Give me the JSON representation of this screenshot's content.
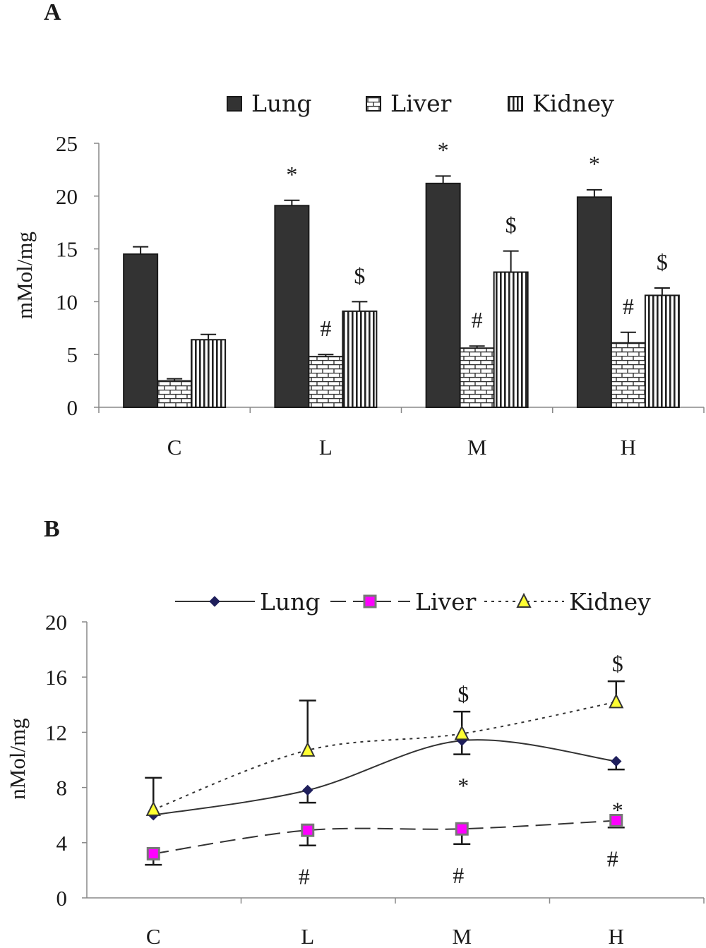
{
  "chart_data": [
    {
      "panel": "A",
      "type": "bar",
      "ylabel": "mMol/mg",
      "ylim": [
        0,
        25
      ],
      "yticks": [
        0,
        5,
        10,
        15,
        20,
        25
      ],
      "categories": [
        "C",
        "L",
        "M",
        "H"
      ],
      "legend_placement": "top",
      "series": [
        {
          "name": "Lung",
          "values": [
            14.5,
            19.1,
            21.2,
            19.9
          ],
          "errors": [
            0.7,
            0.5,
            0.7,
            0.7
          ],
          "color": "#333333",
          "pattern": "solid"
        },
        {
          "name": "Liver",
          "values": [
            2.5,
            4.8,
            5.6,
            6.1
          ],
          "errors": [
            0.2,
            0.2,
            0.2,
            1.0
          ],
          "color": "#ffffff",
          "pattern": "brick"
        },
        {
          "name": "Kidney",
          "values": [
            6.4,
            9.1,
            12.8,
            10.6
          ],
          "errors": [
            0.5,
            0.9,
            2.0,
            0.7
          ],
          "color": "#ffffff",
          "pattern": "vertical-lines"
        }
      ],
      "annotations": [
        {
          "category": "L",
          "series": "Lung",
          "text": "*"
        },
        {
          "category": "M",
          "series": "Lung",
          "text": "*"
        },
        {
          "category": "H",
          "series": "Lung",
          "text": "*"
        },
        {
          "category": "L",
          "series": "Liver",
          "text": "#"
        },
        {
          "category": "M",
          "series": "Liver",
          "text": "#"
        },
        {
          "category": "H",
          "series": "Liver",
          "text": "#"
        },
        {
          "category": "L",
          "series": "Kidney",
          "text": "$"
        },
        {
          "category": "M",
          "series": "Kidney",
          "text": "$"
        },
        {
          "category": "H",
          "series": "Kidney",
          "text": "$"
        }
      ]
    },
    {
      "panel": "B",
      "type": "line",
      "ylabel": "nMol/mg",
      "ylim": [
        0,
        20
      ],
      "yticks": [
        0,
        4,
        8,
        12,
        16,
        20
      ],
      "categories": [
        "C",
        "L",
        "M",
        "H"
      ],
      "legend_placement": "top",
      "series": [
        {
          "name": "Lung",
          "values": [
            6.0,
            7.8,
            11.4,
            9.9
          ],
          "errors": [
            null,
            0.9,
            1.0,
            0.6
          ],
          "error_dir": "down",
          "color": "#333333",
          "marker": "diamond",
          "marker_color": "#1f1f5c",
          "line": "solid"
        },
        {
          "name": "Liver",
          "values": [
            3.2,
            4.9,
            5.0,
            5.6
          ],
          "errors": [
            0.8,
            1.1,
            1.1,
            0.5
          ],
          "error_dir": "down",
          "color": "#333333",
          "marker": "square",
          "marker_color": "#ff00ff",
          "line": "dashed"
        },
        {
          "name": "Kidney",
          "values": [
            6.4,
            10.7,
            11.9,
            14.2
          ],
          "errors": [
            2.3,
            3.6,
            1.6,
            1.5
          ],
          "error_dir": "up",
          "color": "#333333",
          "marker": "triangle",
          "marker_color": "#ffff33",
          "line": "dotted"
        }
      ],
      "annotations": [
        {
          "category": "M",
          "series": "Kidney",
          "text": "$"
        },
        {
          "category": "H",
          "series": "Kidney",
          "text": "$"
        },
        {
          "category": "M",
          "series": "Lung",
          "text": "*"
        },
        {
          "category": "H",
          "series": "Lung",
          "text": "*"
        },
        {
          "category": "L",
          "series": "Liver",
          "text": "#"
        },
        {
          "category": "M",
          "series": "Liver",
          "text": "#"
        },
        {
          "category": "H",
          "series": "Liver",
          "text": "#"
        }
      ]
    }
  ]
}
